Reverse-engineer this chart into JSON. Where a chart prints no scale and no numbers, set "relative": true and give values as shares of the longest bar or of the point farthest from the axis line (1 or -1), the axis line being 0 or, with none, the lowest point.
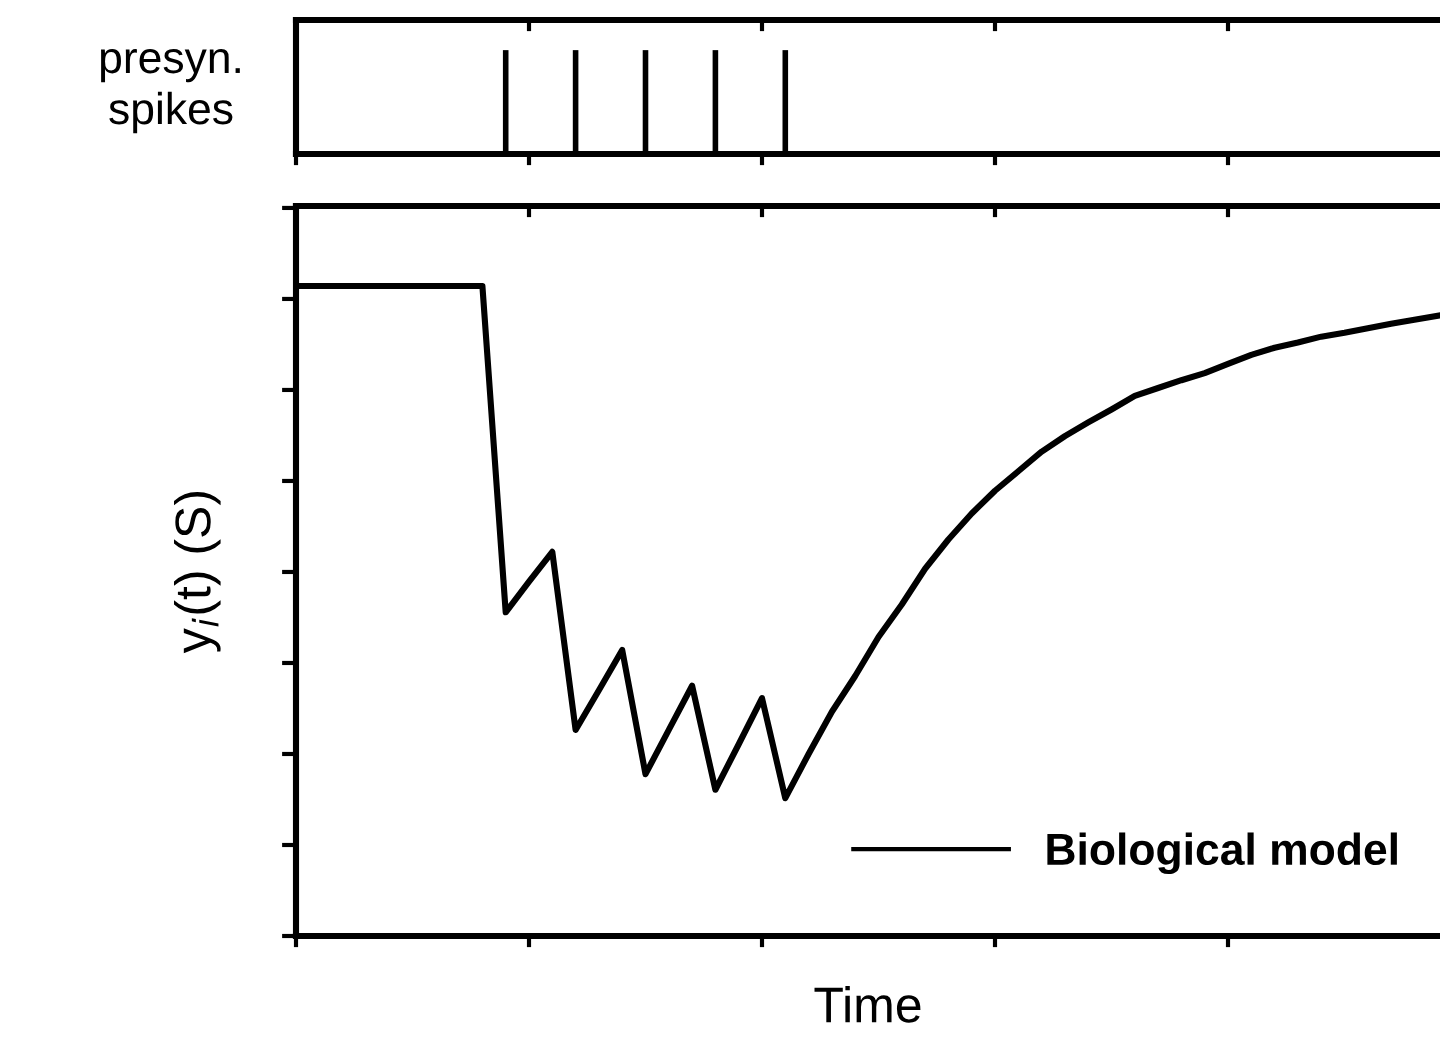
{
  "chart_data": [
    {
      "type": "bar",
      "ylabel": "presyn.\nspikes",
      "relative": true,
      "tick_labels": false,
      "categories": [
        null,
        null,
        null,
        null,
        null
      ],
      "values": [
        1,
        1,
        1,
        1,
        1
      ],
      "color": "#000000"
    },
    {
      "type": "line",
      "xlabel": "Time",
      "ylabel": "y$_{i}$(t) (S)",
      "relative": true,
      "tick_labels": false,
      "legend": "bottom right",
      "marker": "none",
      "line_style": "solid",
      "categories": [
        null,
        null,
        null,
        null,
        null,
        null,
        null,
        null,
        null,
        null,
        null,
        null,
        null,
        null,
        null,
        null,
        null,
        null,
        null,
        null,
        null,
        null,
        null,
        null,
        null,
        null,
        null,
        null,
        null,
        null,
        null,
        null,
        null,
        null,
        null,
        null,
        null,
        null,
        null,
        null,
        null,
        null,
        null,
        null,
        null,
        null,
        null,
        null,
        null,
        null
      ],
      "series": [
        {
          "name": "Biological model",
          "color": "#000000",
          "values": [
            1.0,
            1.0,
            1.0,
            1.0,
            1.0,
            1.0,
            1.0,
            1.0,
            1.0,
            0.498,
            0.545,
            0.591,
            0.317,
            0.378,
            0.44,
            0.249,
            0.317,
            0.385,
            0.225,
            0.295,
            0.366,
            0.212,
            0.28,
            0.345,
            0.4,
            0.46,
            0.51,
            0.565,
            0.61,
            0.65,
            0.685,
            0.715,
            0.745,
            0.769,
            0.79,
            0.81,
            0.831,
            0.843,
            0.855,
            0.866,
            0.88,
            0.894,
            0.905,
            0.913,
            0.922,
            0.928,
            0.935,
            0.942,
            0.948,
            0.954
          ]
        }
      ]
    }
  ]
}
